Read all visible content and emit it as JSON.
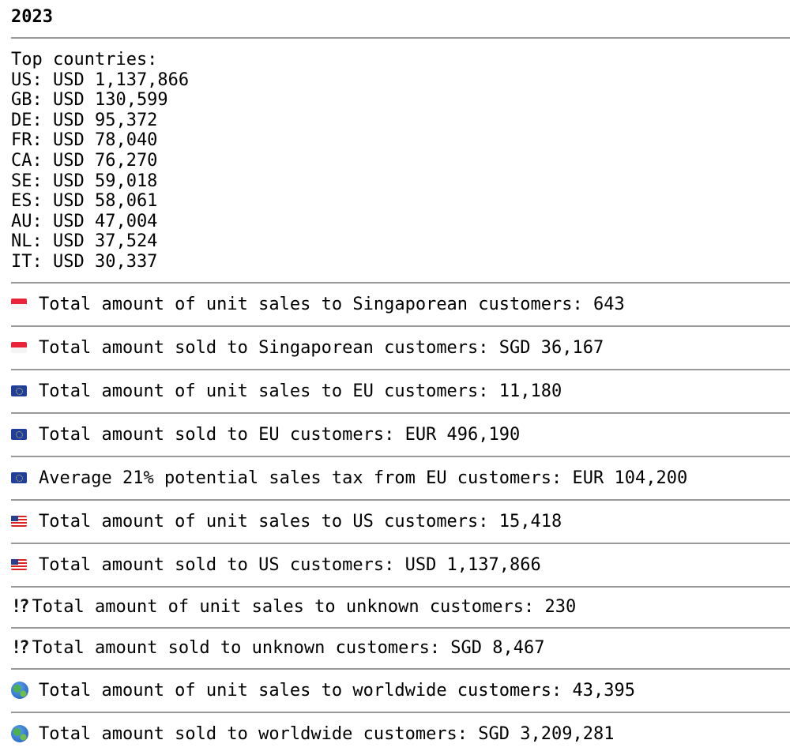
{
  "year": "2023",
  "top_countries": {
    "heading": "Top countries:",
    "items": [
      "US: USD 1,137,866",
      "GB: USD 130,599",
      "DE: USD 95,372",
      "FR: USD 78,040",
      "CA: USD 76,270",
      "SE: USD 59,018",
      "ES: USD 58,061",
      "AU: USD 47,004",
      "NL: USD 37,524",
      "IT: USD 30,337"
    ]
  },
  "stats": [
    {
      "icon": "singapore-flag-icon",
      "text": "Total amount of unit sales to Singaporean customers: 643"
    },
    {
      "icon": "singapore-flag-icon",
      "text": "Total amount sold to Singaporean customers: SGD 36,167"
    },
    {
      "icon": "eu-flag-icon",
      "text": "Total amount of unit sales to EU customers: 11,180"
    },
    {
      "icon": "eu-flag-icon",
      "text": "Total amount sold to EU customers: EUR 496,190"
    },
    {
      "icon": "eu-flag-icon",
      "text": "Average 21% potential sales tax from EU customers: EUR 104,200"
    },
    {
      "icon": "us-flag-icon",
      "text": "Total amount of unit sales to US customers: 15,418"
    },
    {
      "icon": "us-flag-icon",
      "text": "Total amount sold to US customers: USD 1,137,866"
    },
    {
      "icon": "interrobang-icon",
      "text": "Total amount of unit sales to unknown customers: 230"
    },
    {
      "icon": "interrobang-icon",
      "text": "Total amount sold to unknown customers: SGD 8,467"
    },
    {
      "icon": "globe-icon",
      "text": "Total amount of unit sales to worldwide customers: 43,395"
    },
    {
      "icon": "globe-icon",
      "text": "Total amount sold to worldwide customers: SGD 3,209,281"
    }
  ]
}
